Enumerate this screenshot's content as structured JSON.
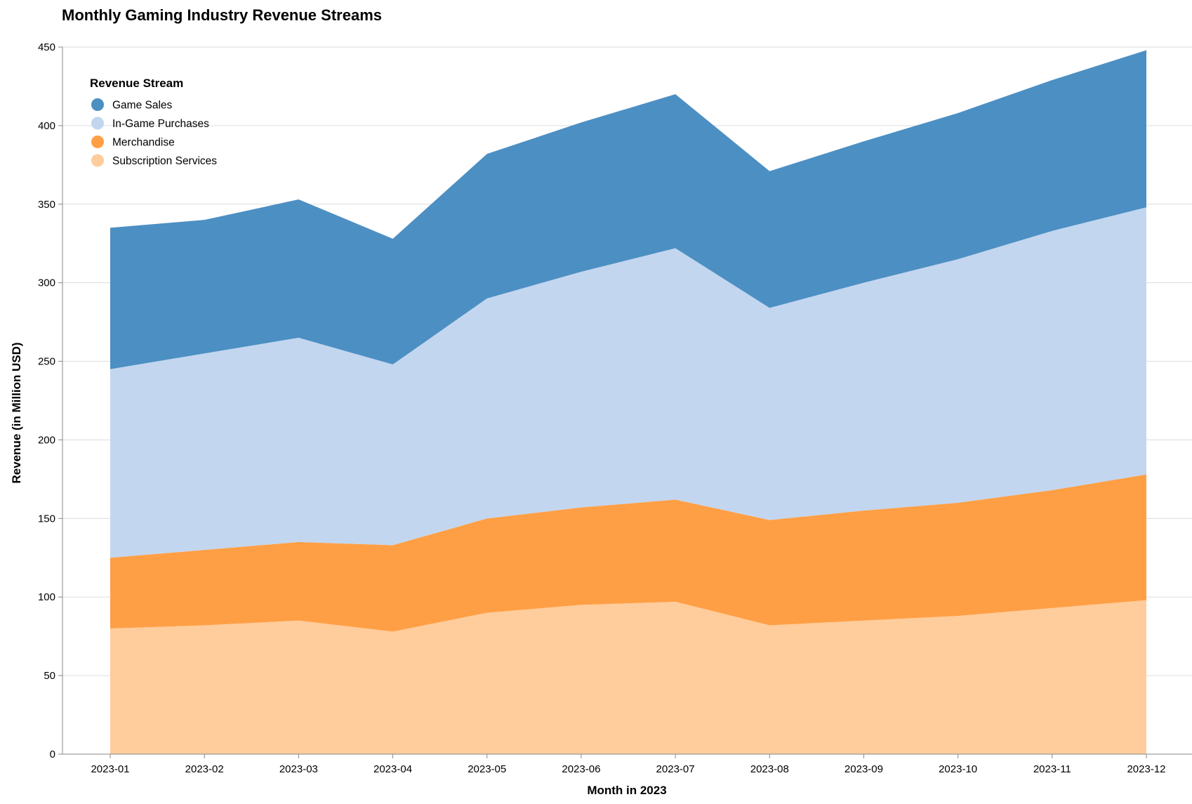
{
  "chart_data": {
    "type": "area",
    "stacked": true,
    "title": "Monthly Gaming Industry Revenue Streams",
    "xlabel": "Month in 2023",
    "ylabel": "Revenue (in Million USD)",
    "ylim": [
      0,
      450
    ],
    "yticks": [
      0,
      50,
      100,
      150,
      200,
      250,
      300,
      350,
      400,
      450
    ],
    "grid": true,
    "legend_title": "Revenue Stream",
    "legend_position": "top-left",
    "categories": [
      "2023-01",
      "2023-02",
      "2023-03",
      "2023-04",
      "2023-05",
      "2023-06",
      "2023-07",
      "2023-08",
      "2023-09",
      "2023-10",
      "2023-11",
      "2023-12"
    ],
    "series": [
      {
        "name": "Game Sales",
        "color": "#4c8fc3",
        "values": [
          90,
          85,
          88,
          80,
          92,
          95,
          98,
          87,
          90,
          93,
          96,
          100
        ]
      },
      {
        "name": "In-Game Purchases",
        "color": "#c3d6ef",
        "values": [
          120,
          125,
          130,
          115,
          140,
          150,
          160,
          135,
          145,
          155,
          165,
          170
        ]
      },
      {
        "name": "Merchandise",
        "color": "#ff9f45",
        "values": [
          45,
          48,
          50,
          55,
          60,
          62,
          65,
          67,
          70,
          72,
          75,
          80
        ]
      },
      {
        "name": "Subscription Services",
        "color": "#ffcc9c",
        "values": [
          80,
          82,
          85,
          78,
          90,
          95,
          97,
          82,
          85,
          88,
          93,
          98
        ]
      }
    ]
  }
}
